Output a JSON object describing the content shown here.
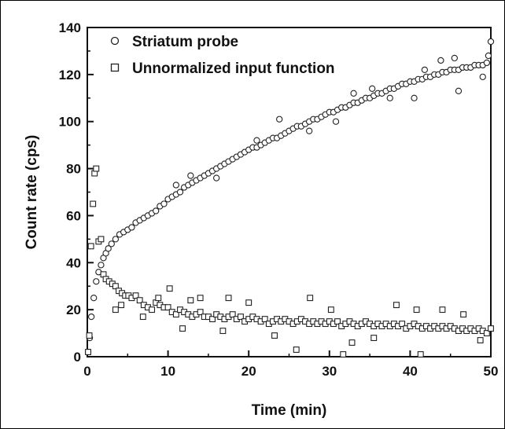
{
  "chart_data": {
    "type": "scatter",
    "xlabel": "Time (min)",
    "ylabel": "Count rate (cps)",
    "xlim": [
      0,
      50
    ],
    "ylim": [
      0,
      140
    ],
    "xticks": [
      "0",
      "10",
      "20",
      "30",
      "40",
      "50"
    ],
    "yticks": [
      "0",
      "20",
      "40",
      "60",
      "80",
      "100",
      "120",
      "140"
    ],
    "grid": false,
    "legend_position": "top-left",
    "series": [
      {
        "name": "Striatum probe",
        "marker": "circle",
        "points": [
          [
            0.1,
            2
          ],
          [
            0.3,
            8
          ],
          [
            0.5,
            17
          ],
          [
            0.8,
            25
          ],
          [
            1.1,
            32
          ],
          [
            1.4,
            36
          ],
          [
            1.7,
            39
          ],
          [
            2.0,
            42
          ],
          [
            2.3,
            44
          ],
          [
            2.6,
            46
          ],
          [
            3.0,
            48
          ],
          [
            3.5,
            50
          ],
          [
            4.0,
            52
          ],
          [
            4.5,
            53
          ],
          [
            5.0,
            54
          ],
          [
            5.5,
            55
          ],
          [
            6.0,
            57
          ],
          [
            6.5,
            58
          ],
          [
            7.0,
            59
          ],
          [
            7.5,
            60
          ],
          [
            8.0,
            61
          ],
          [
            8.5,
            62
          ],
          [
            9.0,
            64
          ],
          [
            9.5,
            65
          ],
          [
            10.0,
            67
          ],
          [
            10.5,
            68
          ],
          [
            11.0,
            69
          ],
          [
            11.5,
            70
          ],
          [
            12.0,
            72
          ],
          [
            12.5,
            73
          ],
          [
            13.0,
            74
          ],
          [
            13.5,
            75
          ],
          [
            14.0,
            76
          ],
          [
            14.5,
            77
          ],
          [
            15.0,
            78
          ],
          [
            15.5,
            79
          ],
          [
            16.0,
            80
          ],
          [
            16.5,
            81
          ],
          [
            17.0,
            82
          ],
          [
            17.5,
            83
          ],
          [
            18.0,
            84
          ],
          [
            18.5,
            85
          ],
          [
            19.0,
            86
          ],
          [
            19.5,
            87
          ],
          [
            20.0,
            88
          ],
          [
            20.5,
            89
          ],
          [
            21.0,
            89
          ],
          [
            21.5,
            90
          ],
          [
            22.0,
            91
          ],
          [
            22.5,
            92
          ],
          [
            23.0,
            93
          ],
          [
            23.5,
            93
          ],
          [
            24.0,
            94
          ],
          [
            24.5,
            95
          ],
          [
            25.0,
            96
          ],
          [
            25.5,
            97
          ],
          [
            26.0,
            98
          ],
          [
            26.5,
            98
          ],
          [
            27.0,
            99
          ],
          [
            27.5,
            100
          ],
          [
            28.0,
            101
          ],
          [
            28.5,
            101
          ],
          [
            29.0,
            102
          ],
          [
            29.5,
            103
          ],
          [
            30.0,
            104
          ],
          [
            30.5,
            104
          ],
          [
            31.0,
            105
          ],
          [
            31.5,
            106
          ],
          [
            32.0,
            106
          ],
          [
            32.5,
            107
          ],
          [
            33.0,
            108
          ],
          [
            33.5,
            108
          ],
          [
            34.0,
            109
          ],
          [
            34.5,
            110
          ],
          [
            35.0,
            110
          ],
          [
            35.5,
            111
          ],
          [
            36.0,
            112
          ],
          [
            36.5,
            112
          ],
          [
            37.0,
            113
          ],
          [
            37.5,
            114
          ],
          [
            38.0,
            114
          ],
          [
            38.5,
            115
          ],
          [
            39.0,
            116
          ],
          [
            39.5,
            116
          ],
          [
            40.0,
            117
          ],
          [
            40.5,
            117
          ],
          [
            41.0,
            118
          ],
          [
            41.5,
            118
          ],
          [
            42.0,
            119
          ],
          [
            42.5,
            119
          ],
          [
            43.0,
            120
          ],
          [
            43.5,
            120
          ],
          [
            44.0,
            121
          ],
          [
            44.5,
            121
          ],
          [
            45.0,
            122
          ],
          [
            45.5,
            122
          ],
          [
            46.0,
            122
          ],
          [
            46.5,
            123
          ],
          [
            47.0,
            123
          ],
          [
            47.5,
            123
          ],
          [
            48.0,
            124
          ],
          [
            48.5,
            124
          ],
          [
            49.0,
            124
          ],
          [
            49.5,
            125
          ],
          [
            11.0,
            73
          ],
          [
            16.0,
            76
          ],
          [
            21.0,
            92
          ],
          [
            27.5,
            96
          ],
          [
            33.0,
            112
          ],
          [
            37.5,
            110
          ],
          [
            40.5,
            110
          ],
          [
            43.8,
            126
          ],
          [
            45.5,
            127
          ],
          [
            46.0,
            113
          ],
          [
            49.0,
            119
          ],
          [
            49.7,
            128
          ],
          [
            50.0,
            134
          ],
          [
            12.8,
            77
          ],
          [
            23.8,
            101
          ],
          [
            35.3,
            114
          ],
          [
            30.8,
            100
          ],
          [
            41.8,
            122
          ]
        ]
      },
      {
        "name": "Unnormalized input function",
        "marker": "square",
        "points": [
          [
            0.1,
            2
          ],
          [
            0.25,
            9
          ],
          [
            0.45,
            47
          ],
          [
            0.7,
            65
          ],
          [
            0.9,
            78
          ],
          [
            1.1,
            80
          ],
          [
            1.4,
            49
          ],
          [
            1.7,
            50
          ],
          [
            2.0,
            35
          ],
          [
            2.3,
            33
          ],
          [
            2.7,
            32
          ],
          [
            3.1,
            31
          ],
          [
            3.5,
            30
          ],
          [
            3.9,
            28
          ],
          [
            4.3,
            27
          ],
          [
            4.7,
            26
          ],
          [
            5.1,
            26
          ],
          [
            5.5,
            25
          ],
          [
            6.0,
            26
          ],
          [
            6.5,
            24
          ],
          [
            7.0,
            22
          ],
          [
            7.5,
            21
          ],
          [
            8.0,
            20
          ],
          [
            8.5,
            23
          ],
          [
            9.0,
            22
          ],
          [
            9.5,
            21
          ],
          [
            10.0,
            21
          ],
          [
            10.5,
            19
          ],
          [
            11.0,
            18
          ],
          [
            11.5,
            20
          ],
          [
            12.0,
            19
          ],
          [
            12.5,
            18
          ],
          [
            13.0,
            17
          ],
          [
            13.5,
            18
          ],
          [
            14.0,
            19
          ],
          [
            14.5,
            17
          ],
          [
            15.0,
            17
          ],
          [
            15.5,
            16
          ],
          [
            16.0,
            18
          ],
          [
            16.5,
            17
          ],
          [
            17.0,
            16
          ],
          [
            17.5,
            17
          ],
          [
            18.0,
            18
          ],
          [
            18.5,
            16
          ],
          [
            19.0,
            17
          ],
          [
            19.5,
            15
          ],
          [
            20.0,
            16
          ],
          [
            20.5,
            17
          ],
          [
            21.0,
            16
          ],
          [
            21.5,
            15
          ],
          [
            22.0,
            16
          ],
          [
            22.5,
            14
          ],
          [
            23.0,
            15
          ],
          [
            23.5,
            16
          ],
          [
            24.0,
            15
          ],
          [
            24.5,
            16
          ],
          [
            25.0,
            15
          ],
          [
            25.5,
            14
          ],
          [
            26.0,
            15
          ],
          [
            26.5,
            16
          ],
          [
            27.0,
            15
          ],
          [
            27.5,
            14
          ],
          [
            28.0,
            15
          ],
          [
            28.5,
            14
          ],
          [
            29.0,
            15
          ],
          [
            29.5,
            14
          ],
          [
            30.0,
            15
          ],
          [
            30.5,
            14
          ],
          [
            31.0,
            15
          ],
          [
            31.5,
            13
          ],
          [
            32.0,
            14
          ],
          [
            32.5,
            15
          ],
          [
            33.0,
            14
          ],
          [
            33.5,
            13
          ],
          [
            34.0,
            14
          ],
          [
            34.5,
            15
          ],
          [
            35.0,
            14
          ],
          [
            35.5,
            13
          ],
          [
            36.0,
            14
          ],
          [
            36.5,
            13
          ],
          [
            37.0,
            14
          ],
          [
            37.5,
            13
          ],
          [
            38.0,
            14
          ],
          [
            38.5,
            13
          ],
          [
            39.0,
            14
          ],
          [
            39.5,
            12
          ],
          [
            40.0,
            13
          ],
          [
            40.5,
            14
          ],
          [
            41.0,
            13
          ],
          [
            41.5,
            12
          ],
          [
            42.0,
            13
          ],
          [
            42.5,
            12
          ],
          [
            43.0,
            13
          ],
          [
            43.5,
            12
          ],
          [
            44.0,
            13
          ],
          [
            44.5,
            12
          ],
          [
            45.0,
            13
          ],
          [
            45.5,
            12
          ],
          [
            46.0,
            11
          ],
          [
            46.5,
            12
          ],
          [
            47.0,
            11
          ],
          [
            47.5,
            12
          ],
          [
            48.0,
            11
          ],
          [
            48.5,
            12
          ],
          [
            49.0,
            11
          ],
          [
            49.5,
            10
          ],
          [
            50.0,
            12
          ],
          [
            4.2,
            22
          ],
          [
            6.9,
            17
          ],
          [
            10.2,
            29
          ],
          [
            11.8,
            12
          ],
          [
            14.0,
            25
          ],
          [
            16.8,
            11
          ],
          [
            17.5,
            25
          ],
          [
            23.2,
            9
          ],
          [
            25.9,
            3
          ],
          [
            27.6,
            25
          ],
          [
            31.7,
            1
          ],
          [
            32.8,
            6
          ],
          [
            35.5,
            8
          ],
          [
            40.8,
            20
          ],
          [
            41.3,
            1
          ],
          [
            44.0,
            20
          ],
          [
            46.6,
            18
          ],
          [
            48.7,
            7
          ],
          [
            20.0,
            23
          ],
          [
            8.8,
            25
          ],
          [
            12.8,
            24
          ],
          [
            3.5,
            20
          ],
          [
            30.2,
            20
          ],
          [
            38.3,
            22
          ]
        ]
      }
    ]
  }
}
